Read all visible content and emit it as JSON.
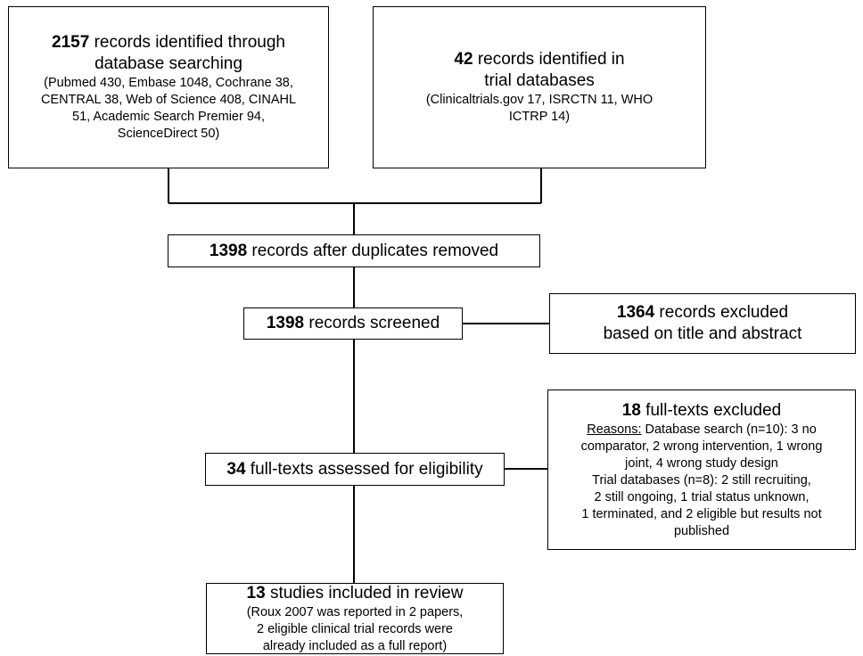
{
  "boxes": {
    "db_search": {
      "num": "2157",
      "text_a": " records identified through",
      "text_b": "database searching",
      "detail_1": "(Pubmed 430, Embase 1048, Cochrane 38,",
      "detail_2": "CENTRAL 38, Web of Science 408, CINAHL",
      "detail_3": "51, Academic Search Premier 94,",
      "detail_4": "ScienceDirect 50)"
    },
    "trial_db": {
      "num": "42",
      "text_a": " records identified in",
      "text_b": "trial databases",
      "detail_1": "(Clinicaltrials.gov 17, ISRCTN 11, WHO",
      "detail_2": "ICTRP 14)"
    },
    "duplicates": {
      "num": "1398",
      "text": " records after duplicates removed"
    },
    "screened": {
      "num": "1398",
      "text": " records screened"
    },
    "excluded_title": {
      "num": "1364",
      "text_a": " records excluded",
      "text_b": "based on title and abstract"
    },
    "fulltext_assessed": {
      "num": "34",
      "text": " full-texts assessed for eligibility"
    },
    "fulltext_excluded": {
      "num": "18",
      "text": " full-texts excluded",
      "reasons_label": "Reasons:",
      "reason_1": " Database search (n=10): 3 no",
      "reason_2": "comparator, 2 wrong intervention, 1 wrong",
      "reason_3": "joint, 4 wrong study design",
      "reason_4": "Trial databases (n=8): 2 still recruiting,",
      "reason_5": "2 still ongoing, 1 trial status unknown,",
      "reason_6": "1 terminated, and 2 eligible but results not",
      "reason_7": "published"
    },
    "included": {
      "num": "13",
      "text": " studies included in review",
      "detail_1": "(Roux 2007 was reported in 2 papers,",
      "detail_2": "2 eligible clinical trial records were",
      "detail_3": "already included as a full report)"
    }
  }
}
